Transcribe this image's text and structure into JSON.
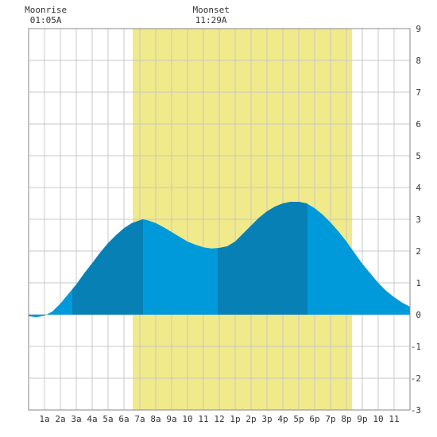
{
  "chart_data": {
    "type": "area",
    "title": "",
    "xlabel": "",
    "ylabel": "",
    "xlim": [
      0,
      24
    ],
    "ylim": [
      -3,
      9
    ],
    "grid": true,
    "x_tick_labels": [
      "1a",
      "2a",
      "3a",
      "4a",
      "5a",
      "6a",
      "7a",
      "8a",
      "9a",
      "10",
      "11",
      "12",
      "1p",
      "2p",
      "3p",
      "4p",
      "5p",
      "6p",
      "7p",
      "8p",
      "9p",
      "10",
      "11"
    ],
    "y_tick_labels": [
      "-3",
      "-2",
      "-1",
      "0",
      "1",
      "2",
      "3",
      "4",
      "5",
      "6",
      "7",
      "8",
      "9"
    ],
    "daylight": {
      "start_hour": 6.55,
      "end_hour": 20.35,
      "color": "#f0ea8a"
    },
    "moon_events": [
      {
        "label": "Moonrise",
        "time": "01:05A",
        "hour": 1.083
      },
      {
        "label": "Moonset",
        "time": "11:29A",
        "hour": 11.483
      }
    ],
    "tide_extremes": [
      {
        "type": "low",
        "hour": 0.4,
        "value": -0.1
      },
      {
        "type": "high",
        "hour": 7.2,
        "value": 3.0
      },
      {
        "type": "low",
        "hour": 12.0,
        "value": 2.1
      },
      {
        "type": "high",
        "hour": 17.5,
        "value": 3.55
      }
    ],
    "series": [
      {
        "x": [
          0,
          0.5,
          1,
          1.5,
          2,
          2.5,
          3,
          3.5,
          4,
          4.5,
          5,
          5.5,
          6,
          6.5,
          7,
          7.2,
          7.5,
          8,
          8.5,
          9,
          9.5,
          10,
          10.5,
          11,
          11.5,
          12,
          12.5,
          13,
          13.5,
          14,
          14.5,
          15,
          15.5,
          16,
          16.5,
          17,
          17.5,
          18,
          18.5,
          19,
          19.5,
          20,
          20.5,
          21,
          21.5,
          22,
          22.5,
          23,
          23.5,
          24
        ],
        "values": [
          -0.05,
          -0.08,
          -0.03,
          0.1,
          0.35,
          0.65,
          0.95,
          1.3,
          1.62,
          1.95,
          2.25,
          2.5,
          2.72,
          2.88,
          2.97,
          3.0,
          2.97,
          2.88,
          2.75,
          2.6,
          2.45,
          2.3,
          2.2,
          2.12,
          2.08,
          2.1,
          2.15,
          2.3,
          2.55,
          2.8,
          3.05,
          3.25,
          3.4,
          3.5,
          3.55,
          3.55,
          3.5,
          3.35,
          3.15,
          2.9,
          2.62,
          2.3,
          1.95,
          1.6,
          1.3,
          1.0,
          0.75,
          0.55,
          0.38,
          0.25
        ]
      }
    ],
    "band_boundaries": [
      2.75,
      7.2,
      11.9,
      17.55
    ],
    "colors": {
      "dark": "#0780b6",
      "light": "#009adb",
      "grid": "#c8c8c8",
      "night": "#ffffff"
    }
  }
}
